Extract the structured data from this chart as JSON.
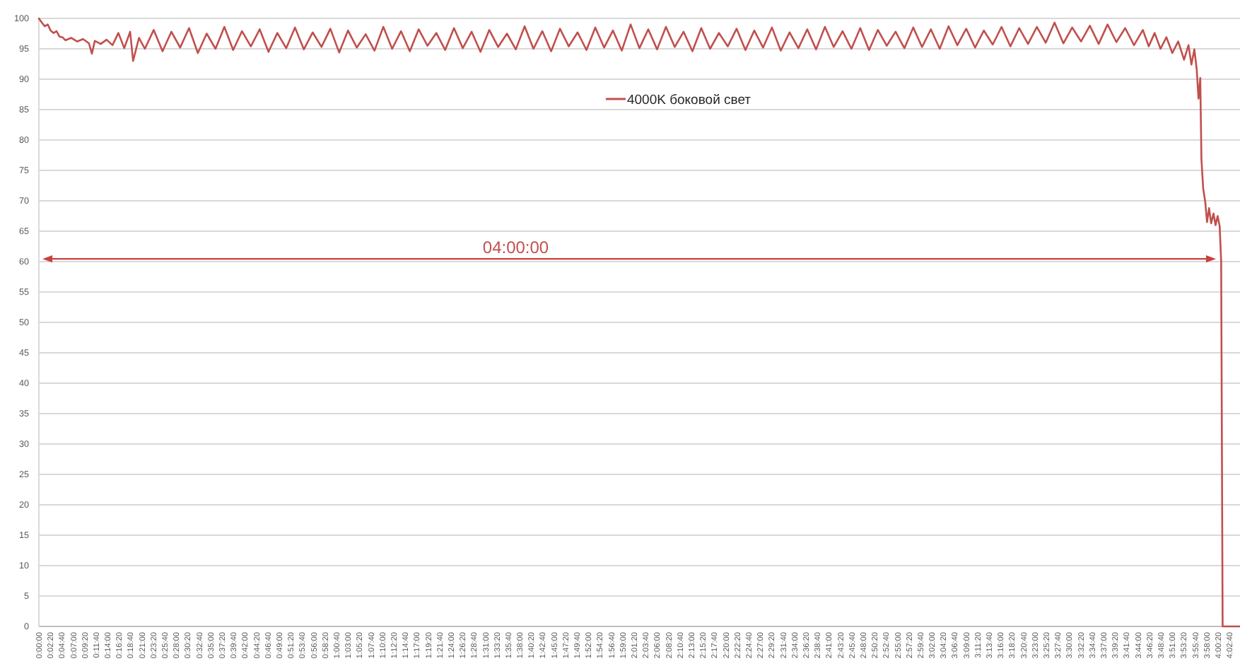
{
  "chart_data": {
    "type": "line",
    "x": [
      0,
      0.01,
      0.02,
      0.03,
      0.04,
      0.05,
      0.06,
      0.07,
      0.08,
      0.09,
      0.11,
      0.13,
      0.15,
      0.17,
      0.18,
      0.19,
      0.21,
      0.23,
      0.25,
      0.27,
      0.29,
      0.31,
      0.32,
      0.34,
      0.36,
      0.39,
      0.42,
      0.45,
      0.48,
      0.51,
      0.54,
      0.57,
      0.6,
      0.63,
      0.66,
      0.69,
      0.72,
      0.75,
      0.78,
      0.81,
      0.84,
      0.87,
      0.9,
      0.93,
      0.96,
      0.99,
      1.02,
      1.05,
      1.08,
      1.11,
      1.14,
      1.17,
      1.2,
      1.23,
      1.26,
      1.29,
      1.32,
      1.35,
      1.38,
      1.41,
      1.44,
      1.47,
      1.5,
      1.53,
      1.56,
      1.59,
      1.62,
      1.65,
      1.68,
      1.71,
      1.74,
      1.77,
      1.8,
      1.83,
      1.86,
      1.89,
      1.92,
      1.95,
      1.98,
      2.01,
      2.04,
      2.07,
      2.1,
      2.13,
      2.16,
      2.19,
      2.22,
      2.25,
      2.28,
      2.31,
      2.34,
      2.37,
      2.4,
      2.43,
      2.46,
      2.49,
      2.52,
      2.55,
      2.58,
      2.61,
      2.64,
      2.67,
      2.7,
      2.73,
      2.76,
      2.79,
      2.82,
      2.85,
      2.88,
      2.91,
      2.94,
      2.97,
      3,
      3.03,
      3.06,
      3.09,
      3.12,
      3.15,
      3.18,
      3.21,
      3.24,
      3.27,
      3.3,
      3.33,
      3.36,
      3.39,
      3.42,
      3.45,
      3.48,
      3.51,
      3.54,
      3.57,
      3.6,
      3.63,
      3.66,
      3.69,
      3.72,
      3.75,
      3.77,
      3.79,
      3.81,
      3.83,
      3.85,
      3.87,
      3.89,
      3.905,
      3.915,
      3.925,
      3.933,
      3.939,
      3.945,
      3.949,
      3.955,
      3.962,
      3.968,
      3.975,
      3.982,
      3.99,
      3.997,
      4.004,
      4.011,
      4.016,
      4.021,
      4.08
    ],
    "series": [
      {
        "name": "4000K боковой свет",
        "color": "#c0504d",
        "values": [
          100,
          99.3,
          98.7,
          99,
          98,
          97.6,
          97.9,
          97,
          96.9,
          96.4,
          96.8,
          96.2,
          96.6,
          95.9,
          94.2,
          96.3,
          95.8,
          96.5,
          95.6,
          97.6,
          95.1,
          97.8,
          93,
          96.8,
          95,
          98.1,
          94.6,
          97.8,
          95.2,
          98.4,
          94.3,
          97.5,
          95,
          98.6,
          94.8,
          97.9,
          95.4,
          98.2,
          94.5,
          97.6,
          95.1,
          98.5,
          94.9,
          97.7,
          95.3,
          98.3,
          94.4,
          98,
          95.2,
          97.4,
          94.7,
          98.6,
          95,
          97.9,
          94.6,
          98.2,
          95.5,
          97.6,
          94.8,
          98.4,
          95.1,
          97.8,
          94.5,
          98.1,
          95.3,
          97.5,
          94.9,
          98.7,
          95,
          97.9,
          94.6,
          98.3,
          95.4,
          97.7,
          94.8,
          98.5,
          95.2,
          98,
          94.7,
          99,
          95.1,
          98.2,
          94.9,
          98.6,
          95.3,
          97.8,
          94.6,
          98.4,
          95,
          97.6,
          95.4,
          98.3,
          94.8,
          98,
          95.2,
          98.5,
          94.7,
          97.7,
          95.1,
          98.2,
          94.9,
          98.6,
          95.3,
          97.9,
          95,
          98.4,
          94.8,
          98.1,
          95.5,
          97.8,
          95.1,
          98.5,
          95.3,
          98.2,
          95,
          98.7,
          95.6,
          98.3,
          95.2,
          98,
          95.7,
          98.6,
          95.4,
          98.4,
          95.8,
          98.6,
          96,
          99.3,
          95.9,
          98.5,
          96.2,
          98.8,
          95.8,
          99,
          96.1,
          98.4,
          95.6,
          98.1,
          95.4,
          97.6,
          95,
          96.9,
          94.3,
          96.2,
          93.2,
          95.6,
          92.4,
          94.9,
          91.6,
          86.8,
          90.2,
          76.8,
          72,
          69.8,
          66.5,
          68.8,
          66.3,
          67.9,
          66,
          67.5,
          65.8,
          60,
          0,
          0
        ]
      }
    ],
    "xlim": [
      0,
      4.08
    ],
    "xticks": [
      {
        "value": 0,
        "label": "0:00:00"
      },
      {
        "value": 0.0389,
        "label": "0:02:20"
      },
      {
        "value": 0.0778,
        "label": "0:04:40"
      },
      {
        "value": 0.1167,
        "label": "0:07:00"
      },
      {
        "value": 0.1556,
        "label": "0:09:20"
      },
      {
        "value": 0.1944,
        "label": "0:11:40"
      },
      {
        "value": 0.2333,
        "label": "0:14:00"
      },
      {
        "value": 0.2722,
        "label": "0:16:20"
      },
      {
        "value": 0.3111,
        "label": "0:18:40"
      },
      {
        "value": 0.35,
        "label": "0:21:00"
      },
      {
        "value": 0.3889,
        "label": "0:23:20"
      },
      {
        "value": 0.4278,
        "label": "0:25:40"
      },
      {
        "value": 0.4667,
        "label": "0:28:00"
      },
      {
        "value": 0.5056,
        "label": "0:30:20"
      },
      {
        "value": 0.5444,
        "label": "0:32:40"
      },
      {
        "value": 0.5833,
        "label": "0:35:00"
      },
      {
        "value": 0.6222,
        "label": "0:37:20"
      },
      {
        "value": 0.6611,
        "label": "0:39:40"
      },
      {
        "value": 0.7,
        "label": "0:42:00"
      },
      {
        "value": 0.7389,
        "label": "0:44:20"
      },
      {
        "value": 0.7778,
        "label": "0:46:40"
      },
      {
        "value": 0.8167,
        "label": "0:49:00"
      },
      {
        "value": 0.8556,
        "label": "0:51:20"
      },
      {
        "value": 0.8944,
        "label": "0:53:40"
      },
      {
        "value": 0.9333,
        "label": "0:56:00"
      },
      {
        "value": 0.9722,
        "label": "0:58:20"
      },
      {
        "value": 1.0111,
        "label": "1:00:40"
      },
      {
        "value": 1.05,
        "label": "1:03:00"
      },
      {
        "value": 1.0889,
        "label": "1:05:20"
      },
      {
        "value": 1.1278,
        "label": "1:07:40"
      },
      {
        "value": 1.1667,
        "label": "1:10:00"
      },
      {
        "value": 1.2056,
        "label": "1:12:20"
      },
      {
        "value": 1.2444,
        "label": "1:14:40"
      },
      {
        "value": 1.2833,
        "label": "1:17:00"
      },
      {
        "value": 1.3222,
        "label": "1:19:20"
      },
      {
        "value": 1.3611,
        "label": "1:21:40"
      },
      {
        "value": 1.4,
        "label": "1:24:00"
      },
      {
        "value": 1.4389,
        "label": "1:26:20"
      },
      {
        "value": 1.4778,
        "label": "1:28:40"
      },
      {
        "value": 1.5167,
        "label": "1:31:00"
      },
      {
        "value": 1.5556,
        "label": "1:33:20"
      },
      {
        "value": 1.5944,
        "label": "1:35:40"
      },
      {
        "value": 1.6333,
        "label": "1:38:00"
      },
      {
        "value": 1.6722,
        "label": "1:40:20"
      },
      {
        "value": 1.7111,
        "label": "1:42:40"
      },
      {
        "value": 1.75,
        "label": "1:45:00"
      },
      {
        "value": 1.7889,
        "label": "1:47:20"
      },
      {
        "value": 1.8278,
        "label": "1:49:40"
      },
      {
        "value": 1.8667,
        "label": "1:52:00"
      },
      {
        "value": 1.9056,
        "label": "1:54:20"
      },
      {
        "value": 1.9444,
        "label": "1:56:40"
      },
      {
        "value": 1.9833,
        "label": "1:59:00"
      },
      {
        "value": 2.0222,
        "label": "2:01:20"
      },
      {
        "value": 2.0611,
        "label": "2:03:40"
      },
      {
        "value": 2.1,
        "label": "2:06:00"
      },
      {
        "value": 2.1389,
        "label": "2:08:20"
      },
      {
        "value": 2.1778,
        "label": "2:10:40"
      },
      {
        "value": 2.2167,
        "label": "2:13:00"
      },
      {
        "value": 2.2556,
        "label": "2:15:20"
      },
      {
        "value": 2.2944,
        "label": "2:17:40"
      },
      {
        "value": 2.3333,
        "label": "2:20:00"
      },
      {
        "value": 2.3722,
        "label": "2:22:20"
      },
      {
        "value": 2.4111,
        "label": "2:24:40"
      },
      {
        "value": 2.45,
        "label": "2:27:00"
      },
      {
        "value": 2.4889,
        "label": "2:29:20"
      },
      {
        "value": 2.5278,
        "label": "2:31:40"
      },
      {
        "value": 2.5667,
        "label": "2:34:00"
      },
      {
        "value": 2.6056,
        "label": "2:36:20"
      },
      {
        "value": 2.6444,
        "label": "2:38:40"
      },
      {
        "value": 2.6833,
        "label": "2:41:00"
      },
      {
        "value": 2.7222,
        "label": "2:43:20"
      },
      {
        "value": 2.7611,
        "label": "2:45:40"
      },
      {
        "value": 2.8,
        "label": "2:48:00"
      },
      {
        "value": 2.8389,
        "label": "2:50:20"
      },
      {
        "value": 2.8778,
        "label": "2:52:40"
      },
      {
        "value": 2.9167,
        "label": "2:55:00"
      },
      {
        "value": 2.9556,
        "label": "2:57:20"
      },
      {
        "value": 2.9944,
        "label": "2:59:40"
      },
      {
        "value": 3.0333,
        "label": "3:02:00"
      },
      {
        "value": 3.0722,
        "label": "3:04:20"
      },
      {
        "value": 3.1111,
        "label": "3:06:40"
      },
      {
        "value": 3.15,
        "label": "3:09:00"
      },
      {
        "value": 3.1889,
        "label": "3:11:20"
      },
      {
        "value": 3.2278,
        "label": "3:13:40"
      },
      {
        "value": 3.2667,
        "label": "3:16:00"
      },
      {
        "value": 3.3056,
        "label": "3:18:20"
      },
      {
        "value": 3.3444,
        "label": "3:20:40"
      },
      {
        "value": 3.3833,
        "label": "3:23:00"
      },
      {
        "value": 3.4222,
        "label": "3:25:20"
      },
      {
        "value": 3.4611,
        "label": "3:27:40"
      },
      {
        "value": 3.5,
        "label": "3:30:00"
      },
      {
        "value": 3.5389,
        "label": "3:32:20"
      },
      {
        "value": 3.5778,
        "label": "3:34:40"
      },
      {
        "value": 3.6167,
        "label": "3:37:00"
      },
      {
        "value": 3.6556,
        "label": "3:39:20"
      },
      {
        "value": 3.6944,
        "label": "3:41:40"
      },
      {
        "value": 3.7333,
        "label": "3:44:00"
      },
      {
        "value": 3.7722,
        "label": "3:46:20"
      },
      {
        "value": 3.8111,
        "label": "3:48:40"
      },
      {
        "value": 3.85,
        "label": "3:51:00"
      },
      {
        "value": 3.8889,
        "label": "3:53:20"
      },
      {
        "value": 3.9278,
        "label": "3:55:40"
      },
      {
        "value": 3.9667,
        "label": "3:58:00"
      },
      {
        "value": 4.0056,
        "label": "4:00:20"
      },
      {
        "value": 4.0444,
        "label": "4:02:40"
      }
    ],
    "ylim": [
      0,
      100
    ],
    "yticks": [
      0,
      5,
      10,
      15,
      20,
      25,
      30,
      35,
      40,
      45,
      50,
      55,
      60,
      65,
      70,
      75,
      80,
      85,
      90,
      95,
      100
    ],
    "grid": "y",
    "legend": "top",
    "annotations": [
      "04:00:00"
    ]
  }
}
